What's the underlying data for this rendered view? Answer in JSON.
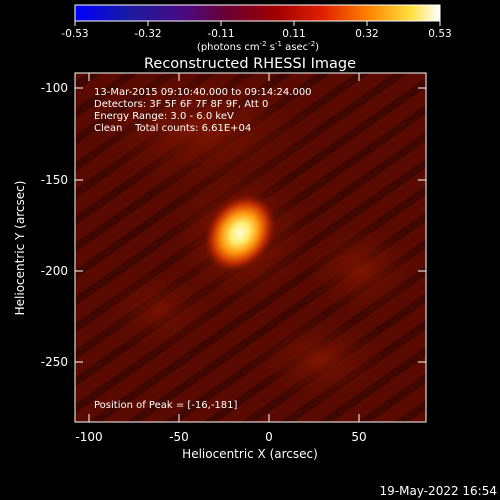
{
  "colorbar": {
    "tick_labels": [
      "-0.53",
      "-0.32",
      "-0.11",
      "0.11",
      "0.32",
      "0.53"
    ],
    "unit_prefix": "(photons cm",
    "unit_exp1": "-2",
    "unit_mid1": " s",
    "unit_exp2": "-1",
    "unit_mid2": " asec",
    "unit_exp3": "-2",
    "unit_suffix": ")"
  },
  "title": "Reconstructed RHESSI Image",
  "annotations": {
    "time_range": "13-Mar-2015 09:10:40.000 to 09:14:24.000",
    "detectors": "Detectors: 3F 5F 6F 7F 8F 9F, Att 0",
    "energy": "Energy Range: 3.0 - 6.0 keV",
    "method": "Clean    Total counts: 6.61E+04",
    "peak": "Position of Peak = [-16,-181]"
  },
  "axes": {
    "xlabel": "Heliocentric X (arcsec)",
    "ylabel": "Heliocentric Y (arcsec)",
    "x_ticks": [
      "-100",
      "-50",
      "0",
      "50"
    ],
    "y_ticks": [
      "-100",
      "-150",
      "-200",
      "-250"
    ]
  },
  "timestamp": "19-May-2022 16:54",
  "colors": {
    "background": "#000000",
    "image_base": "#5a0a00",
    "peak_core": "#fffbe0"
  }
}
